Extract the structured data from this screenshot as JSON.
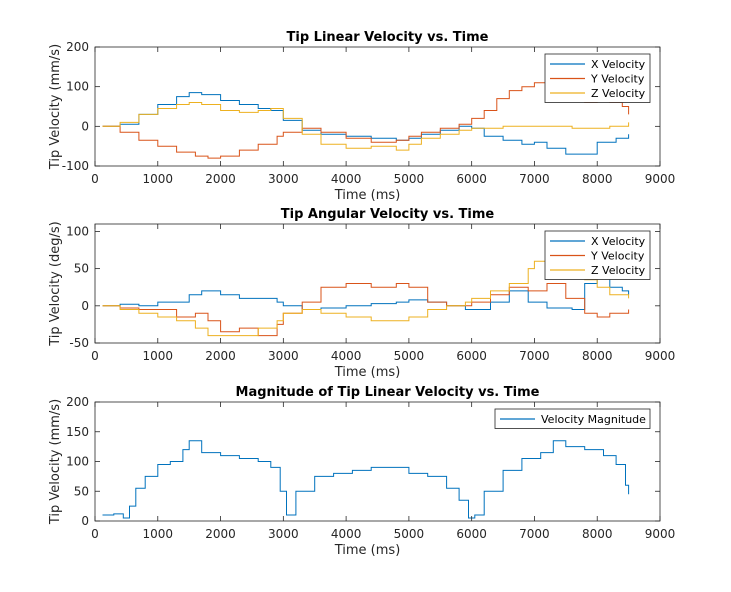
{
  "chart_data": [
    {
      "type": "line",
      "title": "Tip Linear Velocity vs. Time",
      "xlabel": "Time (ms)",
      "ylabel": "Tip Velocity (mm/s)",
      "xlim": [
        0,
        9000
      ],
      "ylim": [
        -100,
        200
      ],
      "xticks": [
        0,
        1000,
        2000,
        3000,
        4000,
        5000,
        6000,
        7000,
        8000,
        9000
      ],
      "yticks": [
        -100,
        0,
        100,
        200
      ],
      "legend_position": "top-right",
      "series": [
        {
          "name": "X Velocity",
          "color": "#0072BD",
          "x": [
            120,
            400,
            700,
            1000,
            1300,
            1500,
            1700,
            2000,
            2300,
            2600,
            2800,
            3000,
            3300,
            3600,
            4000,
            4400,
            4800,
            5000,
            5200,
            5500,
            5800,
            6000,
            6200,
            6500,
            6800,
            7000,
            7200,
            7500,
            7700,
            8000,
            8300,
            8500
          ],
          "values": [
            0,
            5,
            30,
            55,
            75,
            85,
            80,
            65,
            55,
            45,
            40,
            15,
            -10,
            -20,
            -25,
            -30,
            -35,
            -30,
            -20,
            -10,
            0,
            -5,
            -25,
            -35,
            -45,
            -40,
            -55,
            -70,
            -70,
            -40,
            -30,
            -20
          ]
        },
        {
          "name": "Y Velocity",
          "color": "#D95319",
          "x": [
            120,
            400,
            700,
            1000,
            1300,
            1600,
            1800,
            2000,
            2300,
            2600,
            2900,
            3000,
            3300,
            3600,
            4000,
            4400,
            4800,
            5000,
            5200,
            5500,
            5800,
            6000,
            6200,
            6400,
            6600,
            6800,
            7000,
            7200,
            7400,
            7600,
            7800,
            8000,
            8200,
            8400,
            8500
          ],
          "values": [
            0,
            -15,
            -35,
            -50,
            -65,
            -75,
            -80,
            -75,
            -60,
            -45,
            -25,
            -15,
            -5,
            -15,
            -30,
            -40,
            -35,
            -25,
            -15,
            -5,
            5,
            20,
            40,
            70,
            90,
            100,
            110,
            115,
            105,
            80,
            60,
            70,
            60,
            50,
            30
          ]
        },
        {
          "name": "Z Velocity",
          "color": "#EDB120",
          "x": [
            120,
            400,
            700,
            1000,
            1300,
            1500,
            1700,
            2000,
            2300,
            2600,
            2800,
            3000,
            3300,
            3600,
            4000,
            4400,
            4800,
            5000,
            5200,
            5500,
            5800,
            6000,
            6200,
            6500,
            6800,
            7000,
            7300,
            7600,
            7900,
            8200,
            8500
          ],
          "values": [
            0,
            10,
            30,
            45,
            55,
            60,
            55,
            40,
            35,
            40,
            45,
            20,
            -20,
            -45,
            -55,
            -50,
            -60,
            -45,
            -30,
            -20,
            -10,
            -5,
            -5,
            0,
            0,
            0,
            0,
            -5,
            -5,
            0,
            10
          ]
        }
      ]
    },
    {
      "type": "line",
      "title": "Tip Angular Velocity vs. Time",
      "xlabel": "Time (ms)",
      "ylabel": "Tip Velocity (deg/s)",
      "xlim": [
        0,
        9000
      ],
      "ylim": [
        -50,
        110
      ],
      "xticks": [
        0,
        1000,
        2000,
        3000,
        4000,
        5000,
        6000,
        7000,
        8000,
        9000
      ],
      "yticks": [
        -50,
        0,
        50,
        100
      ],
      "legend_position": "top-right",
      "series": [
        {
          "name": "X Velocity",
          "color": "#0072BD",
          "x": [
            120,
            400,
            700,
            1000,
            1300,
            1500,
            1700,
            2000,
            2300,
            2600,
            2900,
            3000,
            3300,
            3600,
            4000,
            4400,
            4800,
            5000,
            5300,
            5600,
            5900,
            6000,
            6300,
            6600,
            6900,
            7200,
            7400,
            7600,
            7800,
            8000,
            8200,
            8400,
            8500
          ],
          "values": [
            0,
            2,
            0,
            5,
            5,
            15,
            20,
            15,
            10,
            10,
            5,
            0,
            -5,
            -3,
            0,
            3,
            5,
            8,
            5,
            0,
            -5,
            -5,
            5,
            20,
            5,
            -3,
            -3,
            -5,
            30,
            40,
            25,
            20,
            15
          ]
        },
        {
          "name": "Y Velocity",
          "color": "#D95319",
          "x": [
            120,
            400,
            700,
            1000,
            1300,
            1600,
            1800,
            2000,
            2300,
            2600,
            2900,
            3000,
            3300,
            3600,
            4000,
            4400,
            4800,
            5000,
            5300,
            5600,
            5900,
            6000,
            6300,
            6600,
            6900,
            7200,
            7500,
            7800,
            8000,
            8200,
            8500
          ],
          "values": [
            0,
            -3,
            -5,
            -5,
            -15,
            -10,
            -20,
            -35,
            -30,
            -40,
            -25,
            -10,
            5,
            25,
            30,
            25,
            30,
            25,
            5,
            0,
            0,
            5,
            15,
            25,
            20,
            30,
            10,
            -10,
            -15,
            -10,
            -5
          ]
        },
        {
          "name": "Z Velocity",
          "color": "#EDB120",
          "x": [
            120,
            400,
            700,
            1000,
            1300,
            1600,
            1800,
            2000,
            2300,
            2600,
            2900,
            3000,
            3300,
            3600,
            4000,
            4400,
            4800,
            5000,
            5300,
            5600,
            5900,
            6000,
            6300,
            6600,
            6900,
            7000,
            7200,
            7300,
            7500,
            7800,
            8000,
            8200,
            8500
          ],
          "values": [
            0,
            -5,
            -10,
            -15,
            -20,
            -30,
            -40,
            -40,
            -40,
            -30,
            -20,
            -10,
            -5,
            -10,
            -15,
            -20,
            -20,
            -15,
            -5,
            0,
            5,
            10,
            20,
            30,
            50,
            60,
            75,
            95,
            40,
            35,
            25,
            15,
            10
          ]
        }
      ]
    },
    {
      "type": "line",
      "title": "Magnitude of Tip Linear Velocity vs. Time",
      "xlabel": "Time (ms)",
      "ylabel": "Tip Velocity (mm/s)",
      "xlim": [
        0,
        9000
      ],
      "ylim": [
        0,
        200
      ],
      "xticks": [
        0,
        1000,
        2000,
        3000,
        4000,
        5000,
        6000,
        7000,
        8000,
        9000
      ],
      "yticks": [
        0,
        50,
        100,
        150,
        200
      ],
      "legend_position": "top-right",
      "series": [
        {
          "name": "Velocity Magnitude",
          "color": "#0072BD",
          "x": [
            120,
            300,
            450,
            550,
            650,
            800,
            1000,
            1200,
            1400,
            1500,
            1700,
            2000,
            2300,
            2600,
            2800,
            2950,
            3050,
            3200,
            3500,
            3800,
            4100,
            4400,
            4700,
            5000,
            5300,
            5600,
            5800,
            5950,
            6050,
            6200,
            6500,
            6800,
            7100,
            7300,
            7500,
            7800,
            8100,
            8300,
            8450,
            8500
          ],
          "values": [
            10,
            12,
            5,
            25,
            55,
            75,
            95,
            100,
            120,
            135,
            115,
            110,
            105,
            100,
            90,
            50,
            10,
            50,
            75,
            80,
            85,
            90,
            90,
            80,
            75,
            55,
            35,
            5,
            10,
            50,
            85,
            105,
            115,
            135,
            125,
            120,
            110,
            95,
            60,
            45
          ]
        }
      ]
    }
  ]
}
